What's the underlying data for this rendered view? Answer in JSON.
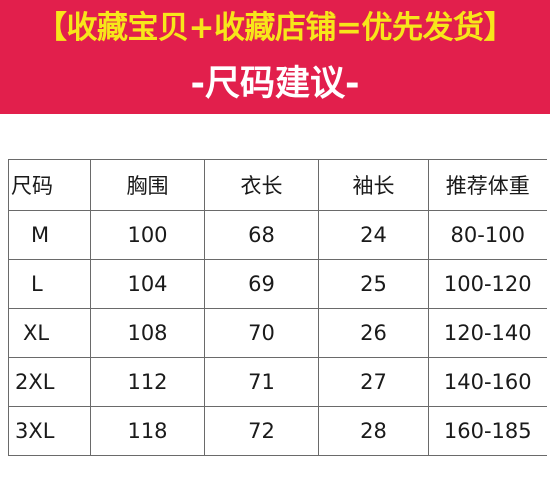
{
  "banner": {
    "promo": "【收藏宝贝+收藏店铺=优先发货】",
    "subtitle": "-尺码建议-",
    "background_color": "#e21f4c",
    "promo_color": "#f7e61a"
  },
  "size_table": {
    "headers": [
      "尺码",
      "胸围",
      "衣长",
      "袖长",
      "推荐体重"
    ],
    "rows": [
      [
        "M",
        "100",
        "68",
        "24",
        "80-100"
      ],
      [
        "L",
        "104",
        "69",
        "25",
        "100-120"
      ],
      [
        "XL",
        "108",
        "70",
        "26",
        "120-140"
      ],
      [
        "2XL",
        "112",
        "71",
        "27",
        "140-160"
      ],
      [
        "3XL",
        "118",
        "72",
        "28",
        "160-185"
      ]
    ]
  }
}
